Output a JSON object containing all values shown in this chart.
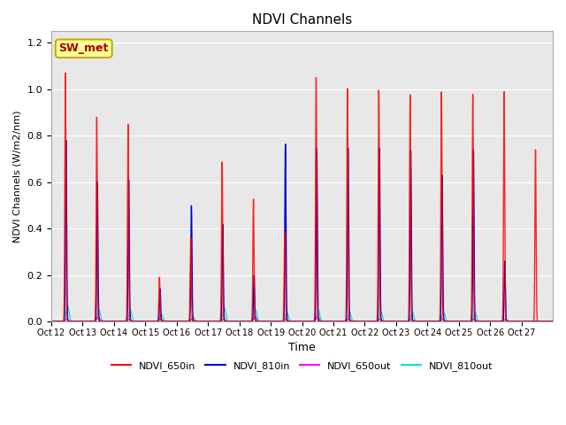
{
  "title": "NDVI Channels",
  "xlabel": "Time",
  "ylabel": "NDVI Channels (W/m2/nm)",
  "ylim": [
    0,
    1.25
  ],
  "annotation_text": "SW_met",
  "legend_labels": [
    "NDVI_650in",
    "NDVI_810in",
    "NDVI_650out",
    "NDVI_810out"
  ],
  "line_colors": [
    "#FF0000",
    "#0000CC",
    "#FF00FF",
    "#00DDDD"
  ],
  "background_color": "#E8E8E8",
  "x_tick_labels": [
    "Oct 12",
    "Oct 13",
    "Oct 14",
    "Oct 15",
    "Oct 16",
    "Oct 17",
    "Oct 18",
    "Oct 19",
    "Oct 20",
    "Oct 21",
    "Oct 22",
    "Oct 23",
    "Oct 24",
    "Oct 25",
    "Oct 26",
    "Oct 27"
  ],
  "n_days": 16,
  "peaks_650in": [
    1.07,
    0.88,
    0.85,
    0.19,
    0.36,
    0.69,
    0.53,
    0.39,
    1.06,
    1.01,
    1.0,
    0.98,
    0.99,
    0.98,
    0.99,
    0.74
  ],
  "peaks_810in": [
    0.78,
    0.6,
    0.61,
    0.14,
    0.5,
    0.42,
    0.2,
    0.77,
    0.75,
    0.75,
    0.75,
    0.74,
    0.63,
    0.74,
    0.26,
    0.0
  ],
  "peaks_650out": [
    0.01,
    0.02,
    0.01,
    0.01,
    0.01,
    0.01,
    0.02,
    0.01,
    0.02,
    0.01,
    0.01,
    0.01,
    0.01,
    0.01,
    0.01,
    0.0
  ],
  "peaks_810out": [
    0.07,
    0.05,
    0.05,
    0.03,
    0.02,
    0.06,
    0.05,
    0.04,
    0.05,
    0.04,
    0.04,
    0.04,
    0.04,
    0.04,
    0.0,
    0.0
  ],
  "peak_offsets_650in": [
    0.45,
    0.45,
    0.45,
    0.45,
    0.45,
    0.45,
    0.45,
    0.45,
    0.45,
    0.45,
    0.45,
    0.45,
    0.45,
    0.45,
    0.45,
    0.45
  ],
  "peak_offsets_810in": [
    0.47,
    0.47,
    0.47,
    0.47,
    0.47,
    0.47,
    0.47,
    0.47,
    0.47,
    0.47,
    0.47,
    0.47,
    0.47,
    0.47,
    0.47,
    0.47
  ],
  "peak_offsets_650out": [
    0.5,
    0.5,
    0.5,
    0.5,
    0.5,
    0.5,
    0.5,
    0.5,
    0.5,
    0.5,
    0.5,
    0.5,
    0.5,
    0.5,
    0.5,
    0.5
  ],
  "peak_offsets_810out": [
    0.52,
    0.52,
    0.52,
    0.52,
    0.52,
    0.52,
    0.52,
    0.52,
    0.52,
    0.52,
    0.52,
    0.52,
    0.52,
    0.52,
    0.52,
    0.52
  ],
  "sigma_in": 0.018,
  "sigma_out": 0.045,
  "pts_per_day": 200
}
